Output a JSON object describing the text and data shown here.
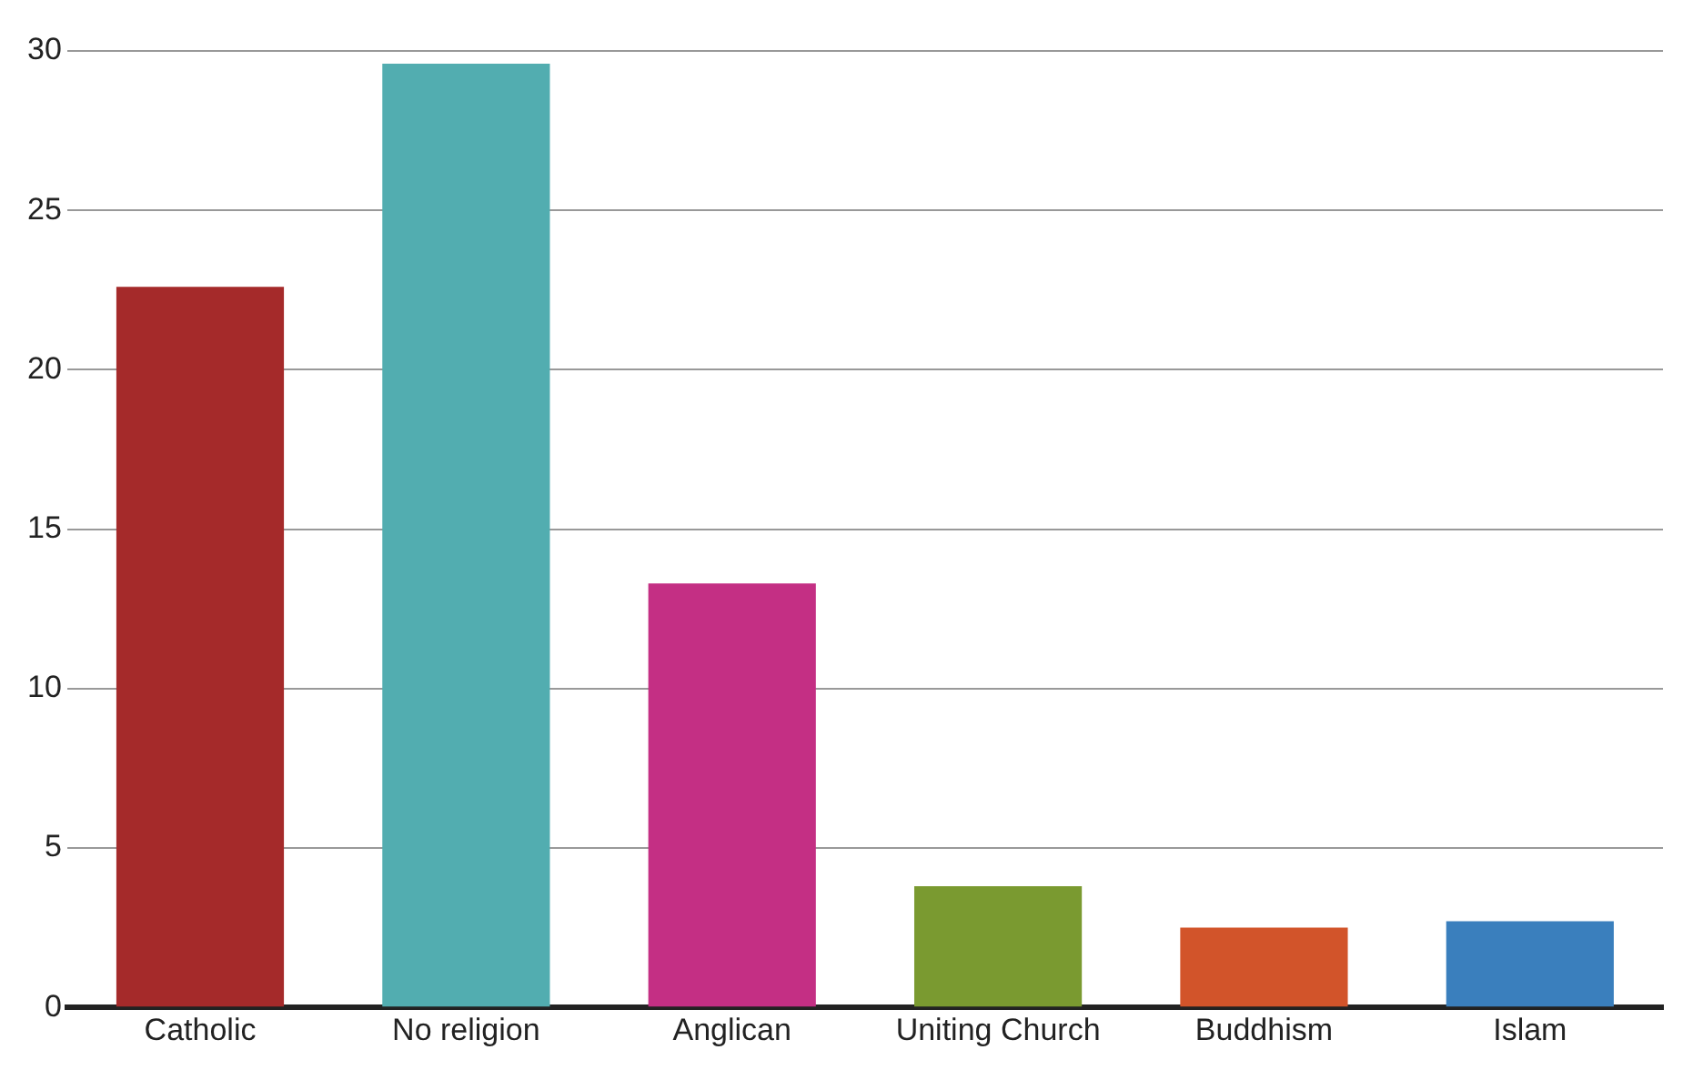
{
  "chart_data": {
    "type": "bar",
    "categories": [
      "Catholic",
      "No religion",
      "Anglican",
      "Uniting Church",
      "Buddhism",
      "Islam"
    ],
    "values": [
      22.6,
      29.6,
      13.3,
      3.8,
      2.5,
      2.7
    ],
    "colors": [
      "#a52a2a",
      "#52adb0",
      "#c42f84",
      "#7a9a30",
      "#d2542a",
      "#3a7fbd"
    ],
    "ylim": [
      0,
      30
    ],
    "yticks": [
      0,
      5,
      10,
      15,
      20,
      25,
      30
    ],
    "grid": "y"
  }
}
